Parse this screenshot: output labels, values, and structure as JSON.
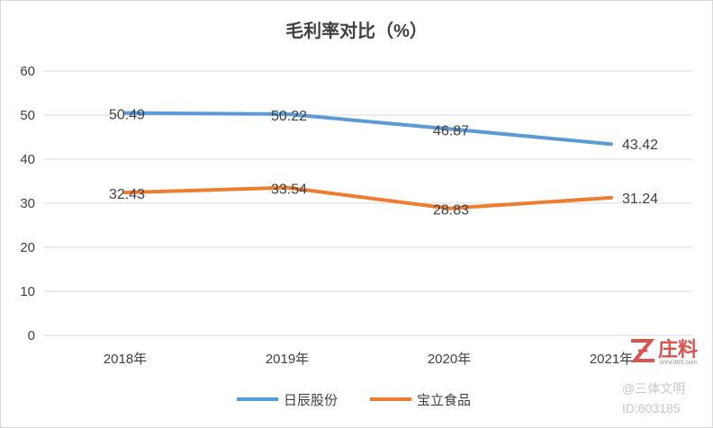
{
  "chart_data": {
    "type": "line",
    "title": "毛利率对比（%）",
    "categories": [
      "2018年",
      "2019年",
      "2020年",
      "2021年"
    ],
    "ylim": [
      0,
      60
    ],
    "yticks": [
      0,
      10,
      20,
      30,
      40,
      50,
      60
    ],
    "grid": true,
    "legend_position": "bottom",
    "series": [
      {
        "name": "日辰股份",
        "color": "#5b9bd5",
        "values": [
          50.49,
          50.22,
          46.87,
          43.42
        ],
        "labels": [
          "50.49",
          "50.22",
          "46.87",
          "43.42"
        ]
      },
      {
        "name": "宝立食品",
        "color": "#ed7d31",
        "values": [
          32.43,
          33.54,
          28.83,
          31.24
        ],
        "labels": [
          "32.43",
          "33.54",
          "28.83",
          "31.24"
        ]
      }
    ]
  },
  "watermark": {
    "brand": "庄料",
    "site": "linhe365.com",
    "credit": "@三体文明",
    "id": "ID:603185"
  }
}
